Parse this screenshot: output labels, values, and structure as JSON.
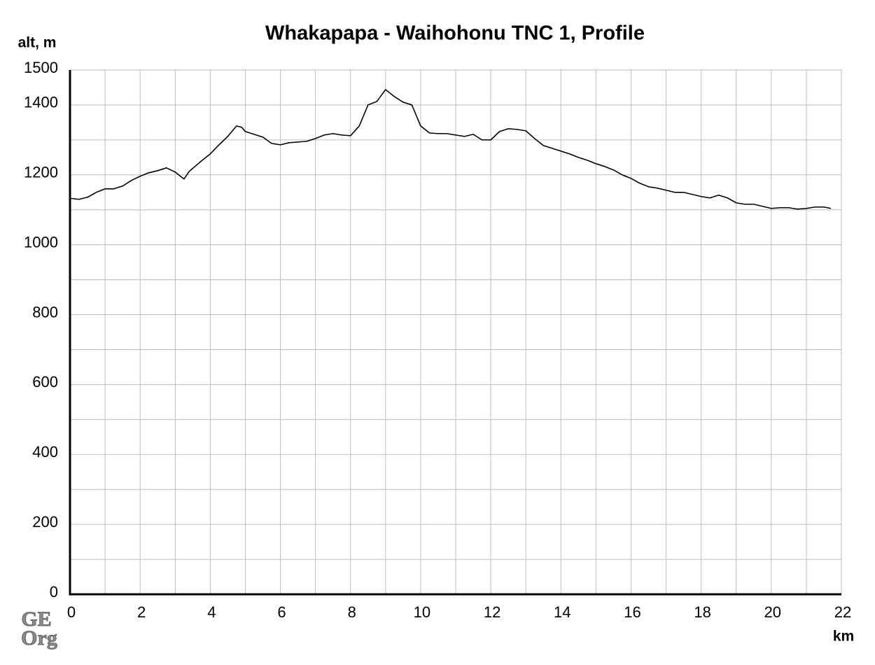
{
  "chart_data": {
    "type": "line",
    "title": "Whakapapa - Waihohonu TNC 1, Profile",
    "y_label": "alt, m",
    "x_label": "km",
    "watermark": [
      "GE",
      "Org"
    ],
    "color": "#000000",
    "grid": true,
    "x": [
      0,
      0.25,
      0.5,
      0.75,
      1,
      1.25,
      1.5,
      1.75,
      2,
      2.25,
      2.5,
      2.75,
      3,
      3.25,
      3.4,
      3.75,
      4,
      4.25,
      4.5,
      4.75,
      4.9,
      5,
      5.25,
      5.5,
      5.75,
      6,
      6.25,
      6.5,
      6.75,
      7,
      7.25,
      7.5,
      7.75,
      8,
      8.25,
      8.5,
      8.75,
      9,
      9.25,
      9.5,
      9.75,
      10,
      10.25,
      10.5,
      10.75,
      11,
      11.25,
      11.5,
      11.75,
      12,
      12.25,
      12.5,
      12.75,
      13,
      13.25,
      13.5,
      13.75,
      14,
      14.25,
      14.5,
      14.75,
      15,
      15.25,
      15.5,
      15.75,
      16,
      16.25,
      16.5,
      16.75,
      17,
      17.25,
      17.5,
      17.75,
      18,
      18.25,
      18.5,
      18.75,
      19,
      19.25,
      19.5,
      19.75,
      20,
      20.25,
      20.5,
      20.75,
      21,
      21.25,
      21.5,
      21.7
    ],
    "values": [
      1133,
      1130,
      1136,
      1150,
      1160,
      1160,
      1168,
      1184,
      1196,
      1206,
      1212,
      1220,
      1208,
      1188,
      1210,
      1240,
      1260,
      1286,
      1310,
      1340,
      1336,
      1324,
      1316,
      1308,
      1290,
      1286,
      1292,
      1294,
      1296,
      1304,
      1314,
      1318,
      1314,
      1312,
      1340,
      1400,
      1410,
      1444,
      1424,
      1408,
      1400,
      1340,
      1320,
      1318,
      1318,
      1314,
      1310,
      1316,
      1300,
      1300,
      1324,
      1332,
      1330,
      1326,
      1304,
      1284,
      1276,
      1268,
      1260,
      1250,
      1242,
      1232,
      1224,
      1214,
      1200,
      1190,
      1176,
      1166,
      1162,
      1156,
      1150,
      1150,
      1144,
      1138,
      1134,
      1142,
      1134,
      1120,
      1116,
      1116,
      1110,
      1104,
      1106,
      1106,
      1102,
      1104,
      1108,
      1108,
      1104
    ],
    "xlim": [
      0,
      22
    ],
    "xticks": [
      0,
      2,
      4,
      6,
      8,
      10,
      12,
      14,
      16,
      18,
      20,
      22
    ],
    "x_minor_ticks": [
      1,
      3,
      5,
      7,
      9,
      11,
      13,
      15,
      17,
      19,
      21
    ],
    "ylim": [
      0,
      1500
    ],
    "yticks": [
      0,
      200,
      400,
      600,
      800,
      1000,
      1200,
      1400,
      1500
    ],
    "y_minor_ticks": [
      100,
      300,
      500,
      700,
      900,
      1100,
      1300
    ]
  }
}
